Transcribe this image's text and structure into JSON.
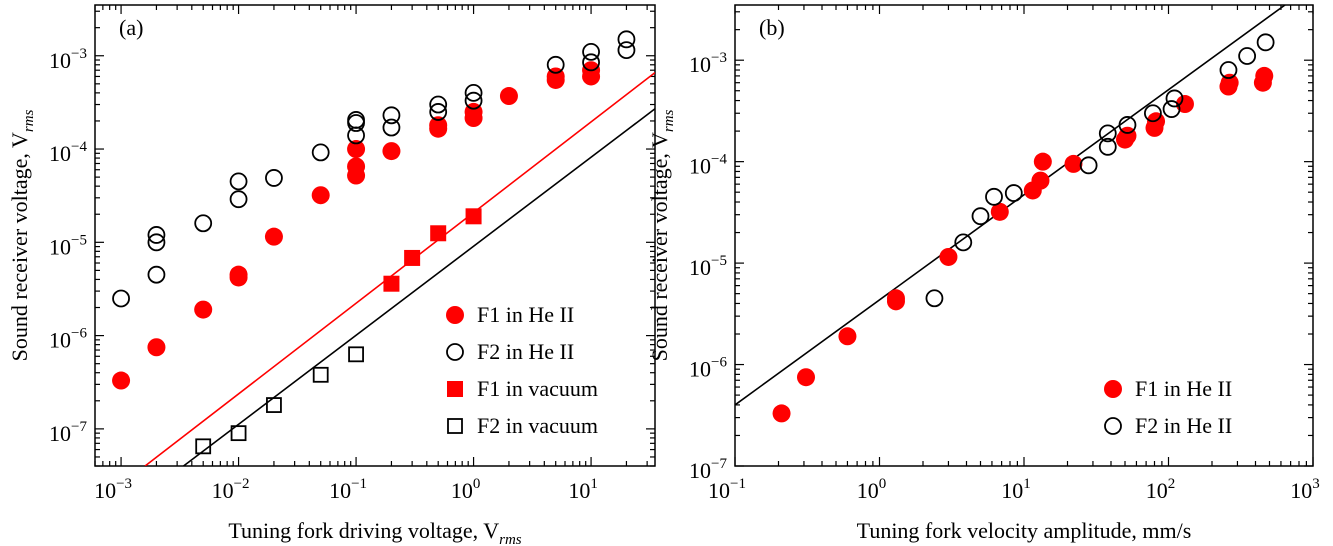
{
  "chart_data": [
    {
      "type": "scatter",
      "panel_label": "(a)",
      "xlabel_main": "Tuning fork driving voltage, V",
      "xlabel_sub": "rms",
      "ylabel_main": "Sound receiver voltage, V",
      "ylabel_sub": "rms",
      "x_scale": "log",
      "y_scale": "log",
      "xlim": [
        0.0006,
        35
      ],
      "ylim": [
        4e-08,
        0.0035
      ],
      "x_ticks": [
        {
          "value": 0.001,
          "base": "10",
          "exp": "−3"
        },
        {
          "value": 0.01,
          "base": "10",
          "exp": "−2"
        },
        {
          "value": 0.1,
          "base": "10",
          "exp": "−1"
        },
        {
          "value": 1,
          "base": "10",
          "exp": "0"
        },
        {
          "value": 10,
          "base": "10",
          "exp": "1"
        }
      ],
      "y_ticks": [
        {
          "value": 1e-07,
          "base": "10",
          "exp": "−7"
        },
        {
          "value": 1e-06,
          "base": "10",
          "exp": "−6"
        },
        {
          "value": 1e-05,
          "base": "10",
          "exp": "−5"
        },
        {
          "value": 0.0001,
          "base": "10",
          "exp": "−4"
        },
        {
          "value": 0.001,
          "base": "10",
          "exp": "−3"
        }
      ],
      "legend_position": "bottom-right",
      "series": [
        {
          "name": "F1 in He II",
          "marker": "circle",
          "fill": "#ff0000",
          "stroke": "#ff0000",
          "points": [
            [
              0.001,
              3.3e-07
            ],
            [
              0.002,
              7.5e-07
            ],
            [
              0.005,
              1.9e-06
            ],
            [
              0.01,
              4.2e-06
            ],
            [
              0.01,
              4.5e-06
            ],
            [
              0.02,
              1.15e-05
            ],
            [
              0.05,
              3.2e-05
            ],
            [
              0.1,
              5.2e-05
            ],
            [
              0.1,
              6.5e-05
            ],
            [
              0.1,
              0.0001
            ],
            [
              0.2,
              9.5e-05
            ],
            [
              0.5,
              0.000165
            ],
            [
              0.5,
              0.00018
            ],
            [
              1,
              0.000215
            ],
            [
              1,
              0.00025
            ],
            [
              2,
              0.00037
            ],
            [
              5,
              0.00055
            ],
            [
              5,
              0.0006
            ],
            [
              10,
              0.0006
            ],
            [
              10,
              0.0007
            ]
          ]
        },
        {
          "name": "F2 in He II",
          "marker": "circle",
          "fill": "none",
          "stroke": "#000000",
          "points": [
            [
              0.001,
              2.5e-06
            ],
            [
              0.002,
              4.5e-06
            ],
            [
              0.002,
              1e-05
            ],
            [
              0.002,
              1.2e-05
            ],
            [
              0.005,
              1.6e-05
            ],
            [
              0.01,
              2.9e-05
            ],
            [
              0.01,
              4.5e-05
            ],
            [
              0.02,
              4.9e-05
            ],
            [
              0.05,
              9.2e-05
            ],
            [
              0.1,
              0.00014
            ],
            [
              0.1,
              0.00019
            ],
            [
              0.1,
              0.000205
            ],
            [
              0.2,
              0.00017
            ],
            [
              0.2,
              0.00023
            ],
            [
              0.5,
              0.00025
            ],
            [
              0.5,
              0.0003
            ],
            [
              1,
              0.00033
            ],
            [
              1,
              0.0004
            ],
            [
              5,
              0.0008
            ],
            [
              10,
              0.00085
            ],
            [
              10,
              0.0011
            ],
            [
              20,
              0.00115
            ],
            [
              20,
              0.0015
            ]
          ]
        },
        {
          "name": "F1 in vacuum",
          "marker": "square",
          "fill": "#ff0000",
          "stroke": "#ff0000",
          "points": [
            [
              0.2,
              3.6e-06
            ],
            [
              0.3,
              6.8e-06
            ],
            [
              0.5,
              1.25e-05
            ],
            [
              1,
              1.9e-05
            ]
          ]
        },
        {
          "name": "F2 in vacuum",
          "marker": "square",
          "fill": "none",
          "stroke": "#000000",
          "points": [
            [
              0.005,
              6.5e-08
            ],
            [
              0.01,
              9e-08
            ],
            [
              0.02,
              1.8e-07
            ],
            [
              0.05,
              3.8e-07
            ],
            [
              0.1,
              6.3e-07
            ]
          ]
        }
      ],
      "lines": [
        {
          "color": "#ff0000",
          "from": [
            0.0016,
            4e-08
          ],
          "to": [
            35,
            0.00066
          ]
        },
        {
          "color": "#000000",
          "from": [
            0.0034,
            4e-08
          ],
          "to": [
            35,
            0.00027
          ]
        }
      ]
    },
    {
      "type": "scatter",
      "panel_label": "(b)",
      "xlabel_main": "Tuning fork velocity amplitude, mm/s",
      "ylabel_main": "Sound receiver voltage, V",
      "ylabel_sub": "rms",
      "x_scale": "log",
      "y_scale": "log",
      "xlim": [
        0.1,
        1000
      ],
      "ylim": [
        1e-07,
        0.0035
      ],
      "x_ticks": [
        {
          "value": 0.1,
          "base": "10",
          "exp": "−1"
        },
        {
          "value": 1,
          "base": "10",
          "exp": "0"
        },
        {
          "value": 10,
          "base": "10",
          "exp": "1"
        },
        {
          "value": 100,
          "base": "10",
          "exp": "2"
        },
        {
          "value": 1000,
          "base": "10",
          "exp": "3"
        }
      ],
      "y_ticks": [
        {
          "value": 1e-07,
          "base": "10",
          "exp": "−7"
        },
        {
          "value": 1e-06,
          "base": "10",
          "exp": "−6"
        },
        {
          "value": 1e-05,
          "base": "10",
          "exp": "−5"
        },
        {
          "value": 0.0001,
          "base": "10",
          "exp": "−4"
        },
        {
          "value": 0.001,
          "base": "10",
          "exp": "−3"
        }
      ],
      "legend_position": "bottom-right",
      "series": [
        {
          "name": "F1 in He II",
          "marker": "circle",
          "fill": "#ff0000",
          "stroke": "#ff0000",
          "points": [
            [
              0.21,
              3.3e-07
            ],
            [
              0.31,
              7.5e-07
            ],
            [
              0.6,
              1.9e-06
            ],
            [
              1.3,
              4.2e-06
            ],
            [
              1.3,
              4.5e-06
            ],
            [
              3,
              1.15e-05
            ],
            [
              6.8,
              3.2e-05
            ],
            [
              11.5,
              5.2e-05
            ],
            [
              13,
              6.5e-05
            ],
            [
              13.5,
              0.0001
            ],
            [
              22,
              9.5e-05
            ],
            [
              50,
              0.000165
            ],
            [
              52,
              0.00018
            ],
            [
              80,
              0.000215
            ],
            [
              82,
              0.00025
            ],
            [
              130,
              0.00037
            ],
            [
              260,
              0.00055
            ],
            [
              265,
              0.0006
            ],
            [
              450,
              0.0006
            ],
            [
              460,
              0.0007
            ]
          ]
        },
        {
          "name": "F2 in He II",
          "marker": "circle",
          "fill": "none",
          "stroke": "#000000",
          "points": [
            [
              2.4,
              4.5e-06
            ],
            [
              3.8,
              1.6e-05
            ],
            [
              5,
              2.9e-05
            ],
            [
              6.2,
              4.5e-05
            ],
            [
              8.5,
              4.9e-05
            ],
            [
              28,
              9.2e-05
            ],
            [
              38,
              0.00014
            ],
            [
              38,
              0.00019
            ],
            [
              52,
              0.00023
            ],
            [
              78,
              0.0003
            ],
            [
              105,
              0.00033
            ],
            [
              110,
              0.00042
            ],
            [
              260,
              0.0008
            ],
            [
              350,
              0.0011
            ],
            [
              470,
              0.0015
            ]
          ]
        }
      ],
      "lines": [
        {
          "color": "#000000",
          "from": [
            0.1,
            4e-07
          ],
          "to": [
            640,
            0.0035
          ]
        }
      ]
    }
  ]
}
